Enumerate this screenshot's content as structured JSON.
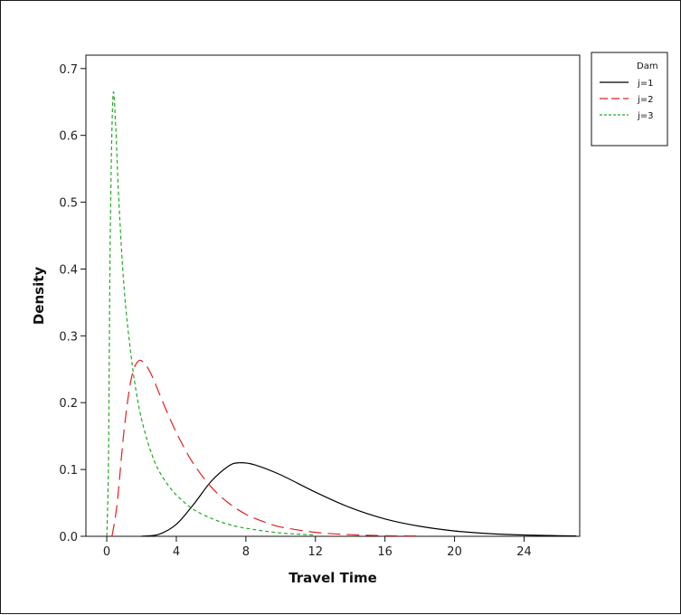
{
  "chart_data": {
    "type": "line",
    "title": "",
    "xlabel": "Travel Time",
    "ylabel": "Density",
    "xlim": [
      -1.2,
      27.2
    ],
    "ylim": [
      0.0,
      0.72
    ],
    "x_ticks": [
      0,
      4,
      8,
      12,
      16,
      20,
      24
    ],
    "y_ticks": [
      0.0,
      0.1,
      0.2,
      0.3,
      0.4,
      0.5,
      0.6,
      0.7
    ],
    "y_tick_labels": [
      "0.0",
      "0.1",
      "0.2",
      "0.3",
      "0.4",
      "0.5",
      "0.6",
      "0.7"
    ],
    "grid": false,
    "legend": {
      "title": "Dam",
      "placement": "top-right, outside plot"
    },
    "series": [
      {
        "name": "j=1",
        "color": "#000000",
        "dash": "solid",
        "x": [
          2.0,
          3.0,
          4.0,
          5.0,
          6.0,
          7.0,
          7.6,
          8.5,
          10.0,
          12.0,
          14.0,
          16.0,
          18.0,
          20.0,
          22.0,
          24.0,
          26.0,
          27.0
        ],
        "y": [
          0.0,
          0.003,
          0.018,
          0.048,
          0.082,
          0.105,
          0.11,
          0.107,
          0.092,
          0.066,
          0.043,
          0.026,
          0.015,
          0.008,
          0.004,
          0.002,
          0.001,
          0.0005
        ]
      },
      {
        "name": "j=2",
        "color": "#e02020",
        "dash": "long-dash",
        "x": [
          0.3,
          0.6,
          1.0,
          1.4,
          1.8,
          2.2,
          2.6,
          3.0,
          3.6,
          4.2,
          5.0,
          6.0,
          7.0,
          8.0,
          9.0,
          10.0,
          12.0,
          14.0,
          16.0,
          18.0
        ],
        "y": [
          0.0,
          0.05,
          0.16,
          0.235,
          0.262,
          0.258,
          0.24,
          0.215,
          0.178,
          0.145,
          0.108,
          0.074,
          0.05,
          0.033,
          0.022,
          0.014,
          0.006,
          0.0025,
          0.001,
          0.0005
        ]
      },
      {
        "name": "j=3",
        "color": "#22aa22",
        "dash": "short-dash",
        "x": [
          0.0,
          0.1,
          0.2,
          0.35,
          0.5,
          0.7,
          1.0,
          1.4,
          1.8,
          2.2,
          2.6,
          3.0,
          3.6,
          4.2,
          5.0,
          6.0,
          7.0,
          8.0,
          10.0,
          12.0
        ],
        "y": [
          0.0,
          0.12,
          0.45,
          0.655,
          0.62,
          0.5,
          0.37,
          0.27,
          0.2,
          0.155,
          0.122,
          0.098,
          0.074,
          0.057,
          0.04,
          0.027,
          0.018,
          0.012,
          0.005,
          0.002
        ]
      }
    ]
  }
}
